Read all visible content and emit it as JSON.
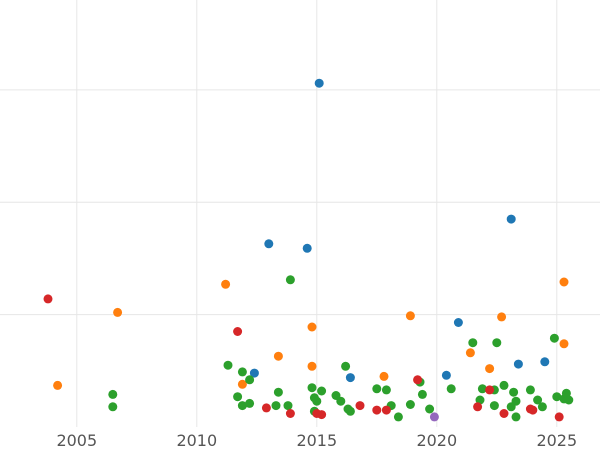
{
  "chart_data": {
    "type": "scatter",
    "title": "",
    "xlabel": "",
    "ylabel": "",
    "xlim": [
      2001.8,
      2026.8
    ],
    "ylim": [
      0,
      38
    ],
    "x_ticks": [
      2005,
      2010,
      2015,
      2020,
      2025
    ],
    "x_tick_labels": [
      "2005",
      "2010",
      "2015",
      "2020",
      "2025"
    ],
    "y_grid": [
      10,
      20,
      30
    ],
    "grid": true,
    "legend": "none",
    "colors": {
      "blue": "#1f77b4",
      "orange": "#ff7f0e",
      "green": "#2ca02c",
      "red": "#d62728",
      "purple": "#9467bd"
    },
    "series": [
      {
        "color": "blue",
        "points": [
          [
            2015.1,
            30.6
          ],
          [
            2023.1,
            18.5
          ],
          [
            2013.0,
            16.3
          ],
          [
            2014.6,
            15.9
          ],
          [
            2020.9,
            9.3
          ],
          [
            2023.4,
            5.6
          ],
          [
            2024.5,
            5.8
          ],
          [
            2012.4,
            4.8
          ],
          [
            2016.4,
            4.4
          ],
          [
            2020.4,
            4.6
          ]
        ]
      },
      {
        "color": "orange",
        "points": [
          [
            2004.2,
            3.7
          ],
          [
            2006.7,
            10.2
          ],
          [
            2011.2,
            12.7
          ],
          [
            2014.8,
            8.9
          ],
          [
            2013.4,
            6.3
          ],
          [
            2014.8,
            5.4
          ],
          [
            2011.9,
            3.8
          ],
          [
            2017.8,
            4.5
          ],
          [
            2018.9,
            9.9
          ],
          [
            2021.4,
            6.6
          ],
          [
            2022.2,
            5.2
          ],
          [
            2022.7,
            9.8
          ],
          [
            2025.3,
            12.9
          ],
          [
            2025.3,
            7.4
          ]
        ]
      },
      {
        "color": "green",
        "points": [
          [
            2006.5,
            2.9
          ],
          [
            2006.5,
            1.8
          ],
          [
            2013.9,
            13.1
          ],
          [
            2011.3,
            5.5
          ],
          [
            2011.7,
            2.7
          ],
          [
            2011.9,
            4.9
          ],
          [
            2012.2,
            4.2
          ],
          [
            2011.9,
            1.9
          ],
          [
            2012.2,
            2.1
          ],
          [
            2013.4,
            3.1
          ],
          [
            2013.3,
            1.9
          ],
          [
            2013.8,
            1.9
          ],
          [
            2014.8,
            3.5
          ],
          [
            2014.9,
            2.6
          ],
          [
            2015.0,
            2.3
          ],
          [
            2014.9,
            1.4
          ],
          [
            2015.2,
            3.2
          ],
          [
            2015.8,
            2.8
          ],
          [
            2016.0,
            2.3
          ],
          [
            2016.2,
            5.4
          ],
          [
            2016.3,
            1.6
          ],
          [
            2016.4,
            1.4
          ],
          [
            2017.5,
            3.4
          ],
          [
            2017.9,
            3.3
          ],
          [
            2018.1,
            1.9
          ],
          [
            2018.4,
            0.9
          ],
          [
            2018.9,
            2.0
          ],
          [
            2019.3,
            4.0
          ],
          [
            2019.4,
            2.9
          ],
          [
            2019.7,
            1.6
          ],
          [
            2020.6,
            3.4
          ],
          [
            2021.5,
            7.5
          ],
          [
            2021.8,
            2.4
          ],
          [
            2021.9,
            3.4
          ],
          [
            2022.4,
            3.3
          ],
          [
            2022.4,
            1.9
          ],
          [
            2022.5,
            7.5
          ],
          [
            2022.8,
            3.7
          ],
          [
            2023.1,
            1.8
          ],
          [
            2023.2,
            3.1
          ],
          [
            2023.3,
            2.3
          ],
          [
            2023.3,
            0.9
          ],
          [
            2023.9,
            3.3
          ],
          [
            2024.2,
            2.4
          ],
          [
            2024.4,
            1.8
          ],
          [
            2024.9,
            7.9
          ],
          [
            2025.0,
            2.7
          ],
          [
            2025.3,
            2.5
          ],
          [
            2025.4,
            3.0
          ],
          [
            2025.5,
            2.4
          ]
        ]
      },
      {
        "color": "red",
        "points": [
          [
            2003.8,
            11.4
          ],
          [
            2011.7,
            8.5
          ],
          [
            2012.9,
            1.7
          ],
          [
            2013.9,
            1.2
          ],
          [
            2015.0,
            1.2
          ],
          [
            2015.2,
            1.1
          ],
          [
            2016.8,
            1.9
          ],
          [
            2017.5,
            1.5
          ],
          [
            2017.9,
            1.5
          ],
          [
            2019.2,
            4.2
          ],
          [
            2021.7,
            1.8
          ],
          [
            2022.2,
            3.3
          ],
          [
            2022.8,
            1.2
          ],
          [
            2023.9,
            1.6
          ],
          [
            2024.0,
            1.5
          ],
          [
            2025.1,
            0.9
          ]
        ]
      },
      {
        "color": "purple",
        "points": [
          [
            2019.9,
            0.9
          ]
        ]
      }
    ]
  }
}
